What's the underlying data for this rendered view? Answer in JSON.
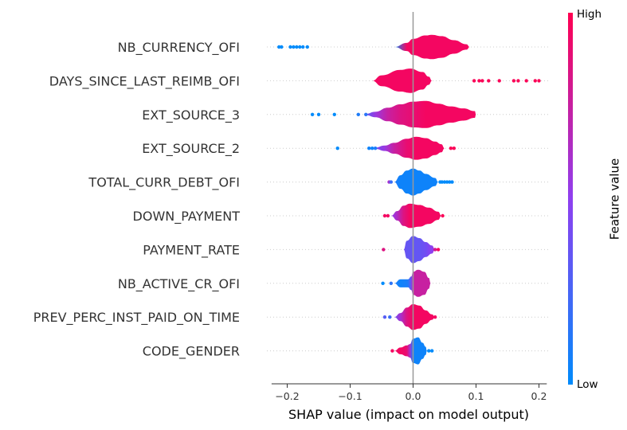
{
  "chart_data": {
    "type": "violin",
    "xlabel": "SHAP value (impact on model output)",
    "xlim": [
      -0.24,
      0.22
    ],
    "xticks": [
      -0.2,
      -0.1,
      0.0,
      0.1,
      0.2
    ],
    "xtick_labels": [
      "−0.2",
      "−0.1",
      "0.0",
      "0.1",
      "0.2"
    ],
    "colorbar": {
      "title": "Feature value",
      "high_label": "High",
      "low_label": "Low",
      "low_color": "#008bfb",
      "high_color": "#ff0051"
    },
    "colors": {
      "zero_line": "#999999",
      "axis": "#333333",
      "dots_row": "#cccccc"
    },
    "features": [
      {
        "name": "NB_CURRENCY_OFI",
        "violin": [
          [
            -0.03,
            0.0,
            0.0
          ],
          [
            -0.01,
            0.3,
            0.95
          ],
          [
            0.0,
            0.6,
            0.95
          ],
          [
            0.02,
            0.85,
            0.95
          ],
          [
            0.03,
            0.9,
            0.95
          ],
          [
            0.045,
            0.8,
            0.95
          ],
          [
            0.065,
            0.5,
            0.95
          ],
          [
            0.085,
            0.2,
            0.95
          ],
          [
            0.09,
            0.0,
            0.95
          ]
        ],
        "outliers": [
          [
            -0.213,
            0.0
          ],
          [
            -0.209,
            0.0
          ],
          [
            -0.195,
            0.0
          ],
          [
            -0.19,
            0.0
          ],
          [
            -0.185,
            0.0
          ],
          [
            -0.18,
            0.0
          ],
          [
            -0.175,
            0.0
          ],
          [
            -0.168,
            0.0
          ]
        ]
      },
      {
        "name": "DAYS_SINCE_LAST_REIMB_OFI",
        "violin": [
          [
            -0.065,
            0.0,
            0.95
          ],
          [
            -0.05,
            0.4,
            0.95
          ],
          [
            -0.02,
            0.8,
            0.95
          ],
          [
            -0.005,
            0.9,
            0.95
          ],
          [
            0.015,
            0.65,
            0.95
          ],
          [
            0.025,
            0.3,
            0.95
          ],
          [
            0.03,
            0.0,
            0.95
          ]
        ],
        "outliers": [
          [
            0.097,
            0.98
          ],
          [
            0.105,
            0.98
          ],
          [
            0.11,
            0.98
          ],
          [
            0.12,
            0.98
          ],
          [
            0.137,
            0.98
          ],
          [
            0.16,
            0.98
          ],
          [
            0.167,
            0.98
          ],
          [
            0.18,
            0.98
          ],
          [
            0.194,
            0.98
          ],
          [
            0.2,
            0.98
          ]
        ]
      },
      {
        "name": "EXT_SOURCE_3",
        "violin": [
          [
            -0.075,
            0.05,
            0.3
          ],
          [
            -0.06,
            0.2,
            0.55
          ],
          [
            -0.04,
            0.5,
            0.75
          ],
          [
            -0.02,
            0.75,
            0.85
          ],
          [
            0.0,
            0.95,
            0.9
          ],
          [
            0.02,
            1.0,
            0.95
          ],
          [
            0.04,
            0.8,
            0.95
          ],
          [
            0.06,
            0.6,
            0.95
          ],
          [
            0.08,
            0.45,
            0.95
          ],
          [
            0.098,
            0.25,
            0.95
          ],
          [
            0.1,
            0.0,
            0.95
          ]
        ],
        "outliers": [
          [
            -0.16,
            0.0
          ],
          [
            -0.15,
            0.0
          ],
          [
            -0.125,
            0.0
          ],
          [
            -0.087,
            0.1
          ],
          [
            -0.075,
            0.15
          ]
        ]
      },
      {
        "name": "EXT_SOURCE_2",
        "violin": [
          [
            -0.06,
            0.05,
            0.4
          ],
          [
            -0.045,
            0.2,
            0.55
          ],
          [
            -0.03,
            0.4,
            0.75
          ],
          [
            -0.01,
            0.7,
            0.9
          ],
          [
            0.005,
            0.85,
            0.95
          ],
          [
            0.02,
            0.75,
            0.95
          ],
          [
            0.035,
            0.5,
            0.95
          ],
          [
            0.045,
            0.3,
            0.95
          ],
          [
            0.05,
            0.0,
            0.95
          ]
        ],
        "outliers": [
          [
            -0.12,
            0.0
          ],
          [
            -0.07,
            0.05
          ],
          [
            -0.065,
            0.05
          ],
          [
            -0.06,
            0.1
          ],
          [
            0.06,
            0.98
          ],
          [
            0.065,
            0.98
          ]
        ]
      },
      {
        "name": "TOTAL_CURR_DEBT_OFI",
        "violin": [
          [
            -0.03,
            0.0,
            0.1
          ],
          [
            -0.02,
            0.5,
            0.05
          ],
          [
            -0.01,
            0.85,
            0.05
          ],
          [
            0.0,
            1.0,
            0.05
          ],
          [
            0.01,
            0.85,
            0.05
          ],
          [
            0.02,
            0.6,
            0.05
          ],
          [
            0.035,
            0.3,
            0.05
          ],
          [
            0.04,
            0.0,
            0.05
          ]
        ],
        "outliers": [
          [
            -0.038,
            0.6
          ],
          [
            -0.035,
            0.2
          ],
          [
            0.043,
            0.0
          ],
          [
            0.046,
            0.0
          ],
          [
            0.05,
            0.0
          ],
          [
            0.054,
            0.0
          ],
          [
            0.058,
            0.0
          ],
          [
            0.062,
            0.0
          ]
        ]
      },
      {
        "name": "DOWN_PAYMENT",
        "violin": [
          [
            -0.035,
            0.0,
            0.5
          ],
          [
            -0.025,
            0.35,
            0.65
          ],
          [
            -0.015,
            0.75,
            0.85
          ],
          [
            -0.005,
            0.9,
            0.95
          ],
          [
            0.01,
            0.8,
            0.95
          ],
          [
            0.025,
            0.6,
            0.95
          ],
          [
            0.04,
            0.3,
            0.95
          ],
          [
            0.045,
            0.0,
            0.95
          ]
        ],
        "outliers": [
          [
            -0.045,
            0.95
          ],
          [
            -0.04,
            0.95
          ],
          [
            0.047,
            0.98
          ]
        ]
      },
      {
        "name": "PAYMENT_RATE",
        "violin": [
          [
            -0.015,
            0.0,
            0.4
          ],
          [
            -0.01,
            0.65,
            0.35
          ],
          [
            0.0,
            1.0,
            0.35
          ],
          [
            0.01,
            0.85,
            0.35
          ],
          [
            0.02,
            0.55,
            0.4
          ],
          [
            0.03,
            0.3,
            0.5
          ],
          [
            0.035,
            0.0,
            0.6
          ]
        ],
        "outliers": [
          [
            -0.047,
            0.85
          ],
          [
            0.035,
            0.8
          ],
          [
            0.04,
            0.95
          ]
        ]
      },
      {
        "name": "NB_ACTIVE_CR_OFI",
        "violin": [
          [
            -0.03,
            0.0,
            0.1
          ],
          [
            -0.02,
            0.3,
            0.05
          ],
          [
            -0.008,
            0.3,
            0.1
          ],
          [
            -0.003,
            0.5,
            0.4
          ],
          [
            0.0,
            0.85,
            0.75
          ],
          [
            0.008,
            1.0,
            0.75
          ],
          [
            0.018,
            0.85,
            0.75
          ],
          [
            0.025,
            0.4,
            0.75
          ],
          [
            0.028,
            0.0,
            0.75
          ]
        ],
        "outliers": [
          [
            -0.048,
            0.0
          ],
          [
            -0.035,
            0.15
          ]
        ]
      },
      {
        "name": "PREV_PERC_INST_PAID_ON_TIME",
        "violin": [
          [
            -0.03,
            0.0,
            0.4
          ],
          [
            -0.02,
            0.3,
            0.6
          ],
          [
            -0.01,
            0.7,
            0.85
          ],
          [
            0.0,
            0.95,
            0.95
          ],
          [
            0.01,
            0.85,
            0.95
          ],
          [
            0.02,
            0.5,
            0.95
          ],
          [
            0.03,
            0.2,
            0.95
          ],
          [
            0.035,
            0.0,
            0.95
          ]
        ],
        "outliers": [
          [
            -0.045,
            0.3
          ],
          [
            -0.037,
            0.2
          ],
          [
            0.035,
            0.95
          ]
        ]
      },
      {
        "name": "CODE_GENDER",
        "violin": [
          [
            -0.03,
            0.0,
            0.95
          ],
          [
            -0.02,
            0.25,
            0.95
          ],
          [
            -0.01,
            0.4,
            0.9
          ],
          [
            -0.005,
            0.5,
            0.6
          ],
          [
            0.0,
            0.9,
            0.05
          ],
          [
            0.008,
            1.0,
            0.05
          ],
          [
            0.015,
            0.6,
            0.05
          ],
          [
            0.02,
            0.3,
            0.05
          ],
          [
            0.022,
            0.0,
            0.05
          ]
        ],
        "outliers": [
          [
            -0.033,
            0.95
          ],
          [
            0.025,
            0.0
          ],
          [
            0.03,
            0.0
          ]
        ]
      }
    ]
  }
}
